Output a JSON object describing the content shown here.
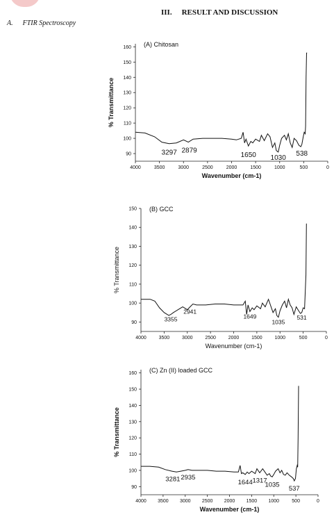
{
  "page": {
    "section_number": "III.",
    "section_title": "RESULT AND DISCUSSION",
    "subsection_number": "A.",
    "subsection_title": "FTIR Spectroscopy",
    "accent_color": "#f4c9c9"
  },
  "chart_data": [
    {
      "type": "line",
      "title": "(A) Chitosan",
      "xlabel": "Wavenumber (cm-1)",
      "ylabel": "% Transmittance",
      "xlim": [
        4000,
        0
      ],
      "ylim": [
        85,
        162
      ],
      "xticks": [
        4000,
        3500,
        3000,
        2500,
        2000,
        1500,
        1000,
        500,
        0
      ],
      "yticks": [
        90,
        100,
        110,
        120,
        130,
        140,
        150,
        160
      ],
      "grid": false,
      "series": [
        {
          "color": "#111111",
          "x": [
            4000,
            3800,
            3600,
            3450,
            3300,
            3150,
            3000,
            2900,
            2800,
            2600,
            2400,
            2200,
            2000,
            1900,
            1800,
            1760,
            1730,
            1700,
            1650,
            1600,
            1560,
            1500,
            1420,
            1380,
            1320,
            1250,
            1200,
            1150,
            1100,
            1070,
            1030,
            1000,
            960,
            900,
            860,
            820,
            780,
            740,
            700,
            650,
            600,
            560,
            538,
            510,
            490,
            470,
            460,
            450,
            440,
            430
          ],
          "y": [
            104,
            103.5,
            101,
            97.5,
            96.5,
            97,
            99,
            97.5,
            99.5,
            100,
            100,
            100,
            99.5,
            99,
            100,
            104,
            97,
            99.5,
            95,
            98,
            97,
            99.5,
            98,
            102,
            98.5,
            103,
            101,
            94,
            97,
            92,
            91,
            95.5,
            100,
            102,
            99,
            103,
            97,
            94,
            100,
            98.5,
            95.5,
            94.5,
            96,
            101,
            104,
            103,
            108,
            140,
            156,
            156
          ]
        }
      ],
      "annotations": [
        {
          "label": "3297",
          "x": 3297
        },
        {
          "label": "2879",
          "x": 2879
        },
        {
          "label": "1650",
          "x": 1650
        },
        {
          "label": "1030",
          "x": 1030
        },
        {
          "label": "538",
          "x": 538
        }
      ]
    },
    {
      "type": "line",
      "title": "(B) GCC",
      "xlabel": "Wavenumber (cm-1)",
      "ylabel": "% Transmittance",
      "xlim": [
        4000,
        0
      ],
      "ylim": [
        85,
        150
      ],
      "xticks": [
        4000,
        3500,
        3000,
        2500,
        2000,
        1500,
        1000,
        500,
        0
      ],
      "yticks": [
        90,
        100,
        110,
        120,
        130,
        140,
        150
      ],
      "grid": false,
      "series": [
        {
          "color": "#111111",
          "x": [
            4000,
            3800,
            3700,
            3600,
            3500,
            3400,
            3355,
            3300,
            3200,
            3100,
            3000,
            2941,
            2880,
            2800,
            2600,
            2400,
            2200,
            2000,
            1800,
            1750,
            1720,
            1690,
            1649,
            1600,
            1560,
            1500,
            1420,
            1380,
            1320,
            1250,
            1150,
            1100,
            1070,
            1035,
            1000,
            950,
            900,
            860,
            820,
            780,
            740,
            700,
            650,
            600,
            560,
            531,
            500,
            470,
            440,
            430
          ],
          "y": [
            102,
            102,
            101,
            97.5,
            95,
            93.5,
            94,
            95,
            96.5,
            98,
            96.5,
            98,
            99.5,
            99,
            99,
            99.5,
            99.5,
            99,
            99,
            101,
            94,
            99,
            95.5,
            97.5,
            96.5,
            98.5,
            97,
            100,
            98,
            102,
            95,
            97,
            93.5,
            92.5,
            96,
            99,
            101,
            97.5,
            102,
            99,
            97.5,
            94,
            98,
            96,
            94.5,
            95,
            97.5,
            97,
            115,
            142
          ]
        }
      ],
      "annotations": [
        {
          "label": "3355",
          "x": 3355
        },
        {
          "label": "2941",
          "x": 2941
        },
        {
          "label": "1649",
          "x": 1649
        },
        {
          "label": "1035",
          "x": 1035
        },
        {
          "label": "531",
          "x": 531
        }
      ]
    },
    {
      "type": "line",
      "title": "(C) Zn (II) loaded GCC",
      "xlabel": "Wavenumber (cm-1)",
      "ylabel": "% Transmittance",
      "xlim": [
        4000,
        0
      ],
      "ylim": [
        85,
        162
      ],
      "xticks": [
        4000,
        3500,
        3000,
        2500,
        2000,
        1500,
        1000,
        500,
        0
      ],
      "yticks": [
        90,
        100,
        110,
        120,
        130,
        140,
        150,
        160
      ],
      "grid": false,
      "series": [
        {
          "color": "#111111",
          "x": [
            4000,
            3800,
            3600,
            3450,
            3300,
            3200,
            3100,
            3000,
            2935,
            2850,
            2700,
            2500,
            2300,
            2100,
            1900,
            1800,
            1760,
            1730,
            1700,
            1644,
            1600,
            1560,
            1500,
            1420,
            1380,
            1317,
            1250,
            1200,
            1150,
            1100,
            1070,
            1035,
            1000,
            960,
            900,
            860,
            820,
            780,
            740,
            700,
            650,
            600,
            560,
            537,
            510,
            490,
            470,
            460,
            450,
            440
          ],
          "y": [
            102.5,
            102.5,
            102,
            100.5,
            99.5,
            99,
            99.5,
            100,
            100.5,
            100,
            100,
            100,
            99.5,
            99.5,
            99,
            99,
            103,
            98,
            98.5,
            97.5,
            99,
            98,
            99.5,
            98,
            101,
            98.5,
            101,
            99,
            97,
            98,
            96.5,
            96,
            97.5,
            99.5,
            101,
            98.5,
            100,
            97.5,
            97,
            98.5,
            97,
            96,
            95,
            93.5,
            95,
            101,
            103,
            102,
            120,
            152
          ]
        }
      ],
      "annotations": [
        {
          "label": "3281",
          "x": 3281
        },
        {
          "label": "2935",
          "x": 2935
        },
        {
          "label": "1644",
          "x": 1644
        },
        {
          "label": "1317",
          "x": 1317
        },
        {
          "label": "1035",
          "x": 1035
        },
        {
          "label": "537",
          "x": 537
        }
      ]
    }
  ]
}
